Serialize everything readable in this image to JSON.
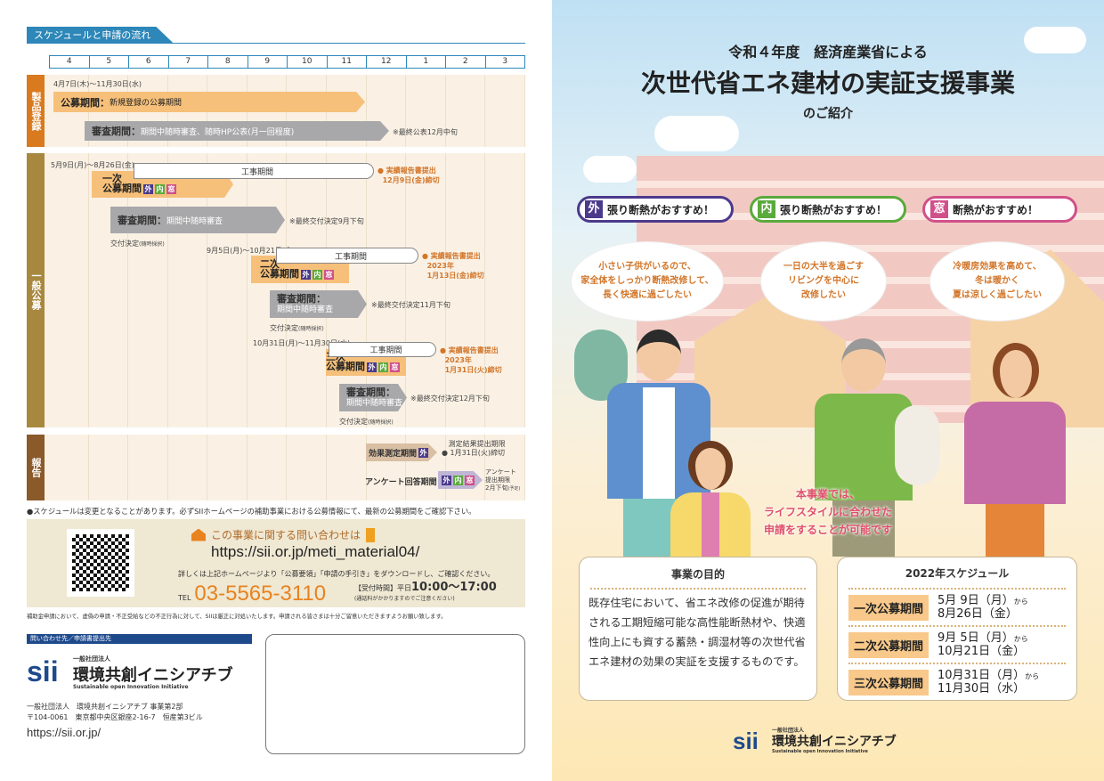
{
  "left": {
    "section_tab": "スケジュールと申請の流れ",
    "months": [
      "4",
      "5",
      "6",
      "7",
      "8",
      "9",
      "10",
      "11",
      "12",
      "1",
      "2",
      "3"
    ],
    "sections": {
      "product": "製品登録",
      "general": "一般公募",
      "report": "報告"
    },
    "product": {
      "date": "4月7日(木)～11月30日(水)",
      "koubo_label": "公募期間：",
      "koubo_desc": "新規登録の公募期間",
      "shinsa_label": "審査期間：",
      "shinsa_desc": "期間中随時審査、随時HP公表(月一回程度)",
      "note": "※最終公表12月中旬"
    },
    "rounds": [
      {
        "date": "5月9日(月)～8月26日(金)",
        "construction": "工事期間",
        "report_note1": "実績報告書提出",
        "report_note2": "12月9日(金)締切",
        "report_note3": "",
        "name1": "一次",
        "name2": "公募期間",
        "shinsa_label": "審査期間：",
        "shinsa_desc": "期間中随時審査",
        "shinsa_note": "※最終交付決定9月下旬",
        "decision": "交付決定",
        "decision_sub": "(随時採択)"
      },
      {
        "date": "9月5日(月)～10月21日(金)",
        "construction": "工事期間",
        "report_note1": "実績報告書提出",
        "report_note2": "2023年",
        "report_note3": "1月13日(金)締切",
        "name1": "二次",
        "name2": "公募期間",
        "shinsa_label": "審査期間：",
        "shinsa_desc": "期間中随時審査",
        "shinsa_note": "※最終交付決定11月下旬",
        "decision": "交付決定",
        "decision_sub": "(随時採択)"
      },
      {
        "date": "10月31日(月)～11月30日(水)",
        "construction": "工事期間",
        "report_note1": "実績報告書提出",
        "report_note2": "2023年",
        "report_note3": "1月31日(火)締切",
        "name1": "三次",
        "name2": "公募期間",
        "shinsa_label": "審査期間：",
        "shinsa_desc": "期間中随時審査",
        "shinsa_note": "※最終交付決定12月下旬",
        "decision": "交付決定",
        "decision_sub": "(随時採択)"
      }
    ],
    "badges": {
      "outer": "外",
      "inner": "内",
      "window": "窓"
    },
    "report": {
      "effect": "効果測定期間",
      "effect_note1": "測定結果提出期限",
      "effect_note2": "1月31日(火)締切",
      "survey": "アンケート回答期間",
      "survey_note1": "アンケート",
      "survey_note2": "提出期限",
      "survey_note3": "2月下旬",
      "survey_note4": "(予定)"
    },
    "schedule_note": "●スケジュールは変更となることがあります。必ずSIIホームページの補助事業における公募情報にて、最新の公募期間をご確認下さい。",
    "contact": {
      "heading": "この事業に関する問い合わせは",
      "url": "https://sii.or.jp/meti_material04/",
      "detail": "詳しくは上記ホームページより「公募要領」「申請の手引き」をダウンロードし、ご確認ください。",
      "tel_label": "TEL",
      "tel": "03-5565-3110",
      "hours_label": "【受付時間】平日",
      "hours": "10:00～17:00",
      "hours_note": "(通話料がかかりますのでご注意ください)"
    },
    "disclaimer": "補助金申請において、虚偽の申請・不正受給などの不正行為に対して、SIIは厳正に対処いたします。申請される皆さまは十分ご留意いただきますようお願い致します。",
    "inquiry_bar": "問い合わせ先／申請書提出先",
    "org": {
      "logo": "sii",
      "prefix": "一般社団法人",
      "name": "環境共創イニシアチブ",
      "english": "Sustainable open Innovation Initiative",
      "line1": "一般社団法人　環境共創イニシアチブ 事業第2部",
      "line2": "〒104-0061　東京都中央区銀座2-16-7　恒産第3ビル",
      "url": "https://sii.or.jp/"
    }
  },
  "right": {
    "title_line1": "令和４年度　経済産業省による",
    "title_line2": "次世代省エネ建材の実証支援事業",
    "title_line3": "のご紹介",
    "pills": [
      {
        "badge": "外",
        "text": "張り断熱がおすすめ！"
      },
      {
        "badge": "内",
        "text": "張り断熱がおすすめ！"
      },
      {
        "badge": "窓",
        "text": "断熱がおすすめ！"
      }
    ],
    "bubbles": [
      [
        "小さい子供がいるので、",
        "家全体をしっかり断熱改修して、",
        "長く快適に過ごしたい"
      ],
      [
        "一日の大半を過ごす",
        "リビングを中心に",
        "改修したい"
      ],
      [
        "冷暖房効果を高めて、",
        "冬は暖かく",
        "夏は涼しく過ごしたい"
      ]
    ],
    "message": [
      "本事業では、",
      "ライフスタイルに合わせた",
      "申請をすることが可能です"
    ],
    "purpose": {
      "title": "事業の目的",
      "body": "既存住宅において、省エネ改修の促進が期待される工期短縮可能な高性能断熱材や、快適性向上にも資する蓄熱・調湿材等の次世代省エネ建材の効果の実証を支援するものです。"
    },
    "schedule": {
      "title": "2022年スケジュール",
      "rows": [
        {
          "label": "一次公募期間",
          "from": "5月 9日（月）",
          "kara": "から",
          "to": "8月26日（金）"
        },
        {
          "label": "二次公募期間",
          "from": "9月 5日（月）",
          "kara": "から",
          "to": "10月21日（金）"
        },
        {
          "label": "三次公募期間",
          "from": "10月31日（月）",
          "kara": "から",
          "to": "11月30日（水）"
        }
      ]
    },
    "org": {
      "logo": "sii",
      "prefix": "一般社団法人",
      "name": "環境共創イニシアチブ",
      "english": "Sustainable open Innovation Initiative"
    }
  },
  "colors": {
    "outer": "#4b3a8c",
    "inner": "#5aaa3c",
    "window": "#d0508a",
    "accent": "#2d87b9",
    "orange": "#e8831f"
  }
}
